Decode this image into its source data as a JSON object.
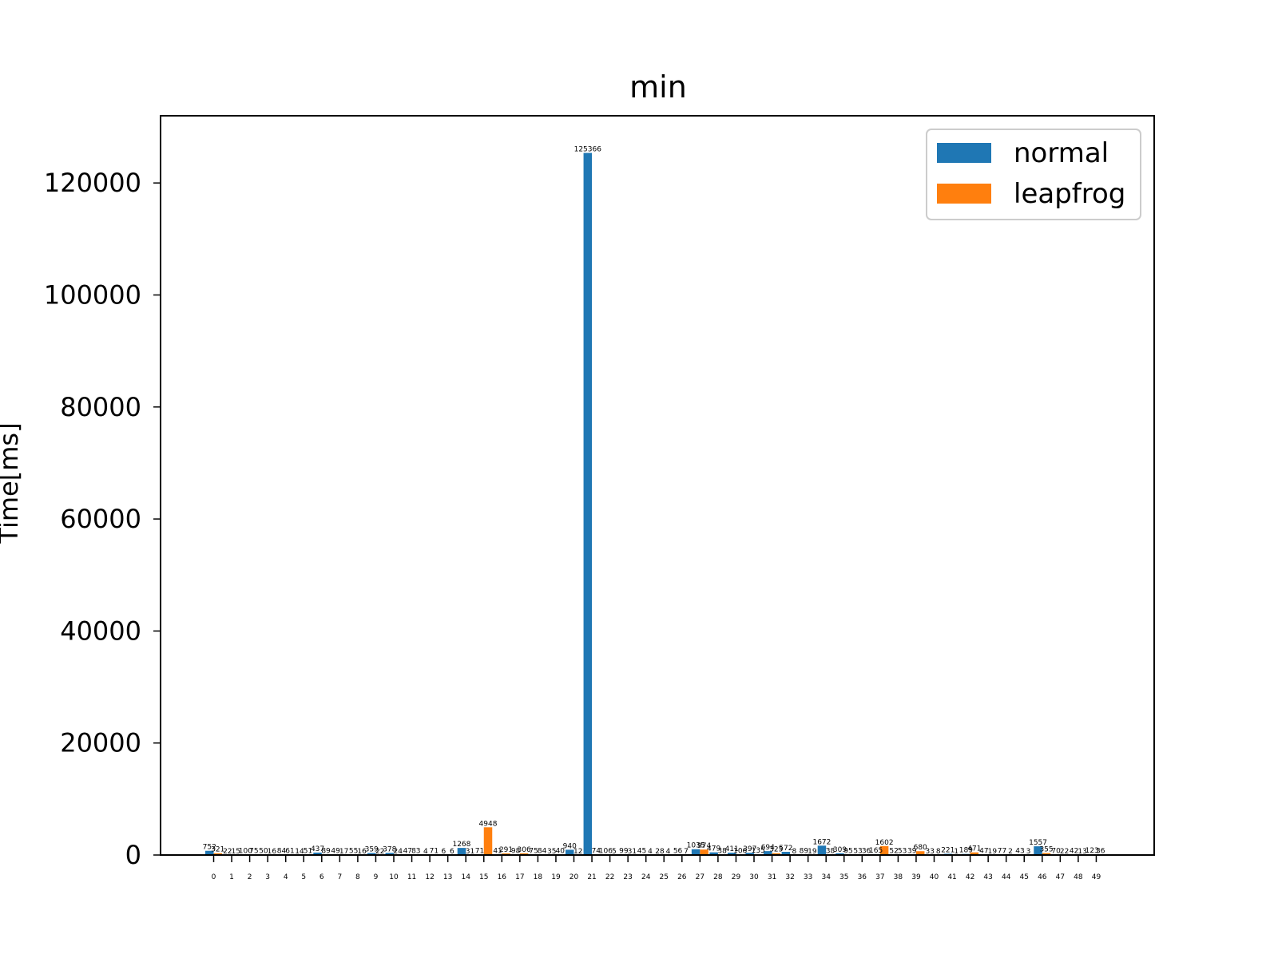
{
  "chart_data": {
    "type": "bar",
    "title": "min",
    "xlabel": "",
    "ylabel": "Time[ms]",
    "ylim": [
      0,
      132000
    ],
    "yticks": [
      0,
      20000,
      40000,
      60000,
      80000,
      100000,
      120000
    ],
    "legend_position": "top-right",
    "grid": false,
    "categories": [
      "0",
      "1",
      "2",
      "3",
      "4",
      "5",
      "6",
      "7",
      "8",
      "9",
      "10",
      "11",
      "12",
      "13",
      "14",
      "15",
      "16",
      "17",
      "18",
      "19",
      "20",
      "21",
      "22",
      "23",
      "24",
      "25",
      "26",
      "27",
      "28",
      "29",
      "30",
      "31",
      "32",
      "33",
      "34",
      "35",
      "36",
      "37",
      "38",
      "39",
      "40",
      "41",
      "42",
      "43",
      "44",
      "45",
      "46",
      "47",
      "48",
      "49"
    ],
    "series": [
      {
        "name": "normal",
        "color": "#1f77b4",
        "values": [
          752,
          22,
          100,
          50,
          84,
          14,
          437,
          49,
          55,
          359,
          378,
          47,
          4,
          6,
          1268,
          71,
          41,
          98,
          75,
          35,
          940,
          125366,
          106,
          99,
          45,
          28,
          56,
          1035,
          479,
          411,
          397,
          694,
          572,
          89,
          1672,
          309,
          53,
          165,
          52,
          39,
          33,
          221,
          189,
          47,
          77,
          43,
          1557,
          70,
          42,
          123
        ]
      },
      {
        "name": "leapfrog",
        "color": "#ff7f0e",
        "values": [
          321,
          15,
          75,
          16,
          61,
          51,
          89,
          17,
          16,
          22,
          24,
          83,
          71,
          6,
          31,
          4948,
          291,
          306,
          84,
          40,
          12,
          74,
          5,
          31,
          4,
          4,
          7,
          974,
          38,
          106,
          135,
          325,
          8,
          19,
          38,
          95,
          36,
          1602,
          53,
          680,
          8,
          1,
          471,
          19,
          2,
          3,
          355,
          22,
          13,
          36
        ]
      }
    ]
  }
}
